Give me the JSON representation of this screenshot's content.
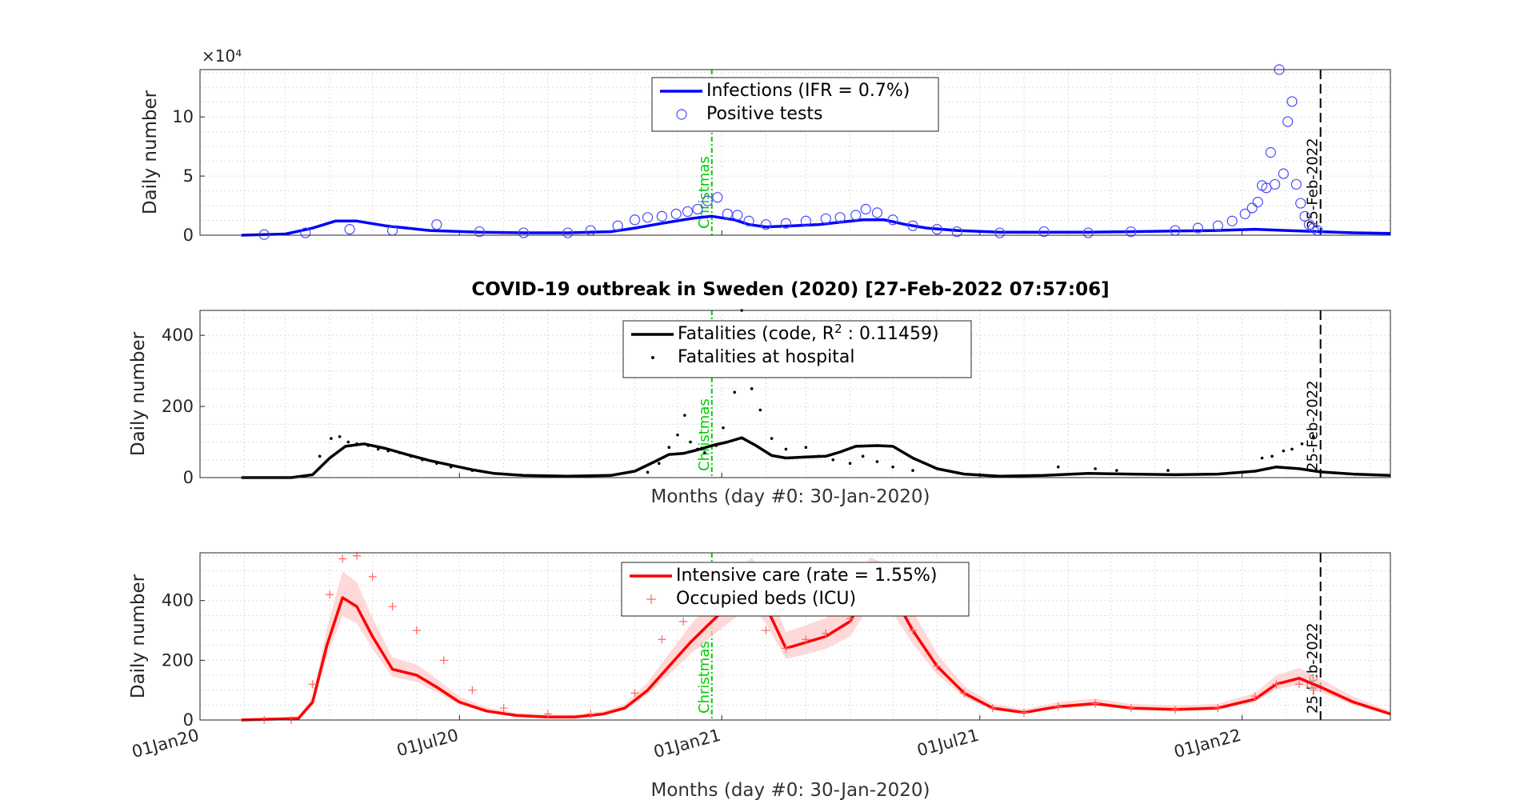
{
  "figure": {
    "title": "COVID-19 outbreak in Sweden (2020) [27-Feb-2022 07:57:06]",
    "xlabel_middle": "Months (day #0: 30-Jan-2020)",
    "xlabel_bottom": "Months (day #0: 30-Jan-2020)",
    "christmas_label": "Christmas",
    "end_marker_label": "25-Feb-2022",
    "x_tick_labels": [
      "01Jan20",
      "01Jul20",
      "01Jan21",
      "01Jul21",
      "01Jan22"
    ],
    "colors": {
      "infections": "#0000ff",
      "fatalities": "#000000",
      "icu": "#ff0000",
      "christmas": "#00cc00",
      "grid": "#dcdcdc"
    }
  },
  "chart_data": [
    {
      "type": "line",
      "panel": "infections",
      "ylabel": "Daily number",
      "y_exponent": "×10⁴",
      "ylim": [
        0,
        14
      ],
      "yticks": [
        0,
        5,
        10
      ],
      "xlim": [
        "2020-01-01",
        "2022-04-15"
      ],
      "legend": {
        "position": "top-center",
        "entries": [
          "Infections (IFR = 0.7%)",
          "Positive tests"
        ]
      },
      "series": [
        {
          "name": "Infections (IFR = 0.7%)",
          "style": "line",
          "x": [
            "2020-01-30",
            "2020-03-01",
            "2020-03-20",
            "2020-04-05",
            "2020-04-20",
            "2020-05-10",
            "2020-06-10",
            "2020-07-15",
            "2020-08-15",
            "2020-09-15",
            "2020-10-15",
            "2020-11-01",
            "2020-11-20",
            "2020-12-10",
            "2020-12-25",
            "2021-01-10",
            "2021-01-20",
            "2021-02-01",
            "2021-02-20",
            "2021-03-10",
            "2021-03-25",
            "2021-04-10",
            "2021-04-25",
            "2021-05-10",
            "2021-05-25",
            "2021-06-15",
            "2021-07-15",
            "2021-08-15",
            "2021-09-15",
            "2021-10-15",
            "2021-11-15",
            "2021-12-15",
            "2022-01-10",
            "2022-02-01",
            "2022-02-25",
            "2022-03-20",
            "2022-04-15"
          ],
          "values": [
            0.0,
            0.1,
            0.6,
            1.2,
            1.2,
            0.8,
            0.4,
            0.25,
            0.2,
            0.2,
            0.3,
            0.6,
            1.0,
            1.4,
            1.6,
            1.3,
            0.9,
            0.7,
            0.8,
            0.9,
            1.1,
            1.3,
            1.3,
            0.9,
            0.6,
            0.4,
            0.25,
            0.25,
            0.25,
            0.3,
            0.35,
            0.4,
            0.5,
            0.4,
            0.3,
            0.2,
            0.15
          ]
        },
        {
          "name": "Positive tests",
          "style": "circles",
          "x": [
            "2020-02-15",
            "2020-03-15",
            "2020-04-15",
            "2020-05-15",
            "2020-06-15",
            "2020-07-15",
            "2020-08-15",
            "2020-09-15",
            "2020-10-01",
            "2020-10-20",
            "2020-11-01",
            "2020-11-10",
            "2020-11-20",
            "2020-11-30",
            "2020-12-08",
            "2020-12-15",
            "2020-12-22",
            "2020-12-29",
            "2021-01-05",
            "2021-01-12",
            "2021-01-20",
            "2021-02-01",
            "2021-02-15",
            "2021-03-01",
            "2021-03-15",
            "2021-03-25",
            "2021-04-05",
            "2021-04-12",
            "2021-04-20",
            "2021-05-01",
            "2021-05-15",
            "2021-06-01",
            "2021-06-15",
            "2021-07-15",
            "2021-08-15",
            "2021-09-15",
            "2021-10-15",
            "2021-11-15",
            "2021-12-01",
            "2021-12-15",
            "2021-12-25",
            "2022-01-03",
            "2022-01-08",
            "2022-01-12",
            "2022-01-15",
            "2022-01-18",
            "2022-01-21",
            "2022-01-24",
            "2022-01-27",
            "2022-01-30",
            "2022-02-02",
            "2022-02-05",
            "2022-02-08",
            "2022-02-11",
            "2022-02-14",
            "2022-02-17",
            "2022-02-20",
            "2022-02-23"
          ],
          "values": [
            0.05,
            0.2,
            0.5,
            0.4,
            0.9,
            0.3,
            0.2,
            0.2,
            0.4,
            0.8,
            1.3,
            1.5,
            1.6,
            1.8,
            2.0,
            2.2,
            2.9,
            3.2,
            1.8,
            1.7,
            1.2,
            0.9,
            1.0,
            1.2,
            1.4,
            1.5,
            1.7,
            2.2,
            1.9,
            1.3,
            0.8,
            0.5,
            0.3,
            0.2,
            0.3,
            0.2,
            0.3,
            0.4,
            0.6,
            0.8,
            1.2,
            1.8,
            2.3,
            2.8,
            4.2,
            4.0,
            7.0,
            4.3,
            14.0,
            5.2,
            9.6,
            11.3,
            4.3,
            2.7,
            1.6,
            0.9,
            0.6,
            0.4
          ]
        }
      ]
    },
    {
      "type": "line",
      "panel": "fatalities",
      "ylabel": "Daily number",
      "ylim": [
        0,
        470
      ],
      "yticks": [
        0,
        200,
        400
      ],
      "xlim": [
        "2020-01-01",
        "2022-04-15"
      ],
      "legend": {
        "position": "top-center",
        "entries": [
          "Fatalities (code, R",
          " : 0.11459)",
          "Fatalities at hospital"
        ],
        "superscript": "2"
      },
      "series": [
        {
          "name": "Fatalities (code, R² : 0.11459)",
          "style": "line",
          "x": [
            "2020-01-30",
            "2020-03-05",
            "2020-03-20",
            "2020-04-01",
            "2020-04-12",
            "2020-04-25",
            "2020-05-10",
            "2020-05-25",
            "2020-06-10",
            "2020-06-25",
            "2020-07-10",
            "2020-07-25",
            "2020-08-15",
            "2020-09-15",
            "2020-10-15",
            "2020-11-01",
            "2020-11-15",
            "2020-11-25",
            "2020-12-05",
            "2020-12-15",
            "2020-12-25",
            "2021-01-05",
            "2021-01-15",
            "2021-01-25",
            "2021-02-05",
            "2021-02-15",
            "2021-03-01",
            "2021-03-15",
            "2021-03-25",
            "2021-04-05",
            "2021-04-20",
            "2021-05-01",
            "2021-05-15",
            "2021-06-01",
            "2021-06-20",
            "2021-07-15",
            "2021-08-15",
            "2021-09-15",
            "2021-10-15",
            "2021-11-15",
            "2021-12-15",
            "2022-01-10",
            "2022-01-25",
            "2022-02-10",
            "2022-02-25",
            "2022-03-20",
            "2022-04-15"
          ],
          "values": [
            0,
            0,
            8,
            55,
            88,
            95,
            82,
            65,
            48,
            35,
            22,
            12,
            6,
            4,
            6,
            18,
            45,
            65,
            68,
            78,
            90,
            100,
            112,
            90,
            62,
            55,
            58,
            60,
            72,
            88,
            90,
            88,
            55,
            25,
            10,
            4,
            6,
            12,
            10,
            8,
            10,
            18,
            30,
            25,
            16,
            10,
            6
          ]
        },
        {
          "name": "Fatalities at hospital",
          "style": "dots",
          "x": [
            "2020-03-25",
            "2020-04-02",
            "2020-04-08",
            "2020-04-14",
            "2020-04-20",
            "2020-04-28",
            "2020-05-05",
            "2020-05-12",
            "2020-05-20",
            "2020-05-28",
            "2020-06-05",
            "2020-06-15",
            "2020-06-25",
            "2020-07-10",
            "2020-11-10",
            "2020-11-18",
            "2020-11-25",
            "2020-12-01",
            "2020-12-06",
            "2020-12-10",
            "2020-12-15",
            "2020-12-20",
            "2020-12-28",
            "2021-01-02",
            "2021-01-10",
            "2021-01-15",
            "2021-01-22",
            "2021-01-28",
            "2021-02-05",
            "2021-02-15",
            "2021-03-01",
            "2021-03-10",
            "2021-03-20",
            "2021-04-01",
            "2021-04-10",
            "2021-04-20",
            "2021-05-01",
            "2021-05-15",
            "2021-08-25",
            "2021-09-20",
            "2021-10-05",
            "2021-11-10",
            "2022-01-15",
            "2022-01-22",
            "2022-01-30",
            "2022-02-05",
            "2022-02-12",
            "2022-02-20"
          ],
          "values": [
            60,
            110,
            115,
            100,
            95,
            90,
            80,
            75,
            70,
            60,
            50,
            40,
            30,
            20,
            15,
            40,
            85,
            120,
            175,
            100,
            80,
            70,
            90,
            140,
            240,
            470,
            250,
            190,
            110,
            80,
            85,
            60,
            50,
            40,
            60,
            45,
            30,
            20,
            30,
            25,
            20,
            20,
            55,
            60,
            75,
            80,
            95,
            115
          ]
        }
      ]
    },
    {
      "type": "line",
      "panel": "icu",
      "ylabel": "Daily number",
      "ylim": [
        0,
        560
      ],
      "yticks": [
        0,
        200,
        400
      ],
      "xlim": [
        "2020-01-01",
        "2022-04-15"
      ],
      "legend": {
        "position": "top-center",
        "entries": [
          "Intensive care (rate = 1.55%)",
          "Occupied beds (ICU)"
        ]
      },
      "series": [
        {
          "name": "Intensive care (rate = 1.55%)",
          "style": "line",
          "x": [
            "2020-01-30",
            "2020-03-10",
            "2020-03-20",
            "2020-03-30",
            "2020-04-10",
            "2020-04-20",
            "2020-05-01",
            "2020-05-15",
            "2020-06-01",
            "2020-06-15",
            "2020-07-01",
            "2020-07-20",
            "2020-08-10",
            "2020-09-01",
            "2020-09-20",
            "2020-10-10",
            "2020-10-25",
            "2020-11-10",
            "2020-11-25",
            "2020-12-10",
            "2020-12-25",
            "2021-01-05",
            "2021-01-15",
            "2021-01-22",
            "2021-02-01",
            "2021-02-15",
            "2021-03-01",
            "2021-03-15",
            "2021-04-01",
            "2021-04-15",
            "2021-05-01",
            "2021-05-15",
            "2021-06-01",
            "2021-06-20",
            "2021-07-10",
            "2021-08-01",
            "2021-08-25",
            "2021-09-20",
            "2021-10-15",
            "2021-11-15",
            "2021-12-15",
            "2022-01-10",
            "2022-01-25",
            "2022-02-10",
            "2022-02-25",
            "2022-03-20",
            "2022-04-15"
          ],
          "values": [
            0,
            5,
            60,
            250,
            410,
            380,
            280,
            170,
            150,
            110,
            60,
            30,
            15,
            10,
            10,
            20,
            40,
            100,
            180,
            260,
            330,
            380,
            420,
            450,
            380,
            240,
            260,
            280,
            330,
            450,
            420,
            300,
            180,
            90,
            40,
            25,
            45,
            55,
            40,
            35,
            40,
            70,
            120,
            140,
            110,
            60,
            20
          ]
        },
        {
          "name": "Occupied beds (ICU)",
          "style": "plus",
          "x": [
            "2020-02-15",
            "2020-03-05",
            "2020-03-20",
            "2020-04-01",
            "2020-04-10",
            "2020-04-20",
            "2020-05-01",
            "2020-05-15",
            "2020-06-01",
            "2020-06-20",
            "2020-07-10",
            "2020-08-01",
            "2020-09-01",
            "2020-10-01",
            "2020-11-01",
            "2020-11-20",
            "2020-12-05",
            "2020-12-20",
            "2021-01-01",
            "2021-01-15",
            "2021-02-01",
            "2021-02-15",
            "2021-03-01",
            "2021-03-15",
            "2021-04-01",
            "2021-04-15",
            "2021-05-01",
            "2021-05-15",
            "2021-06-01",
            "2021-06-20",
            "2021-07-10",
            "2021-08-01",
            "2021-08-25",
            "2021-09-20",
            "2021-10-15",
            "2021-11-15",
            "2021-12-15",
            "2022-01-10",
            "2022-01-25",
            "2022-02-10",
            "2022-02-20"
          ],
          "values": [
            0,
            0,
            120,
            420,
            540,
            550,
            480,
            380,
            300,
            200,
            100,
            40,
            20,
            20,
            90,
            270,
            330,
            380,
            440,
            460,
            300,
            240,
            270,
            290,
            340,
            450,
            420,
            300,
            180,
            90,
            40,
            25,
            45,
            55,
            40,
            35,
            40,
            80,
            120,
            120,
            100
          ]
        }
      ]
    }
  ]
}
